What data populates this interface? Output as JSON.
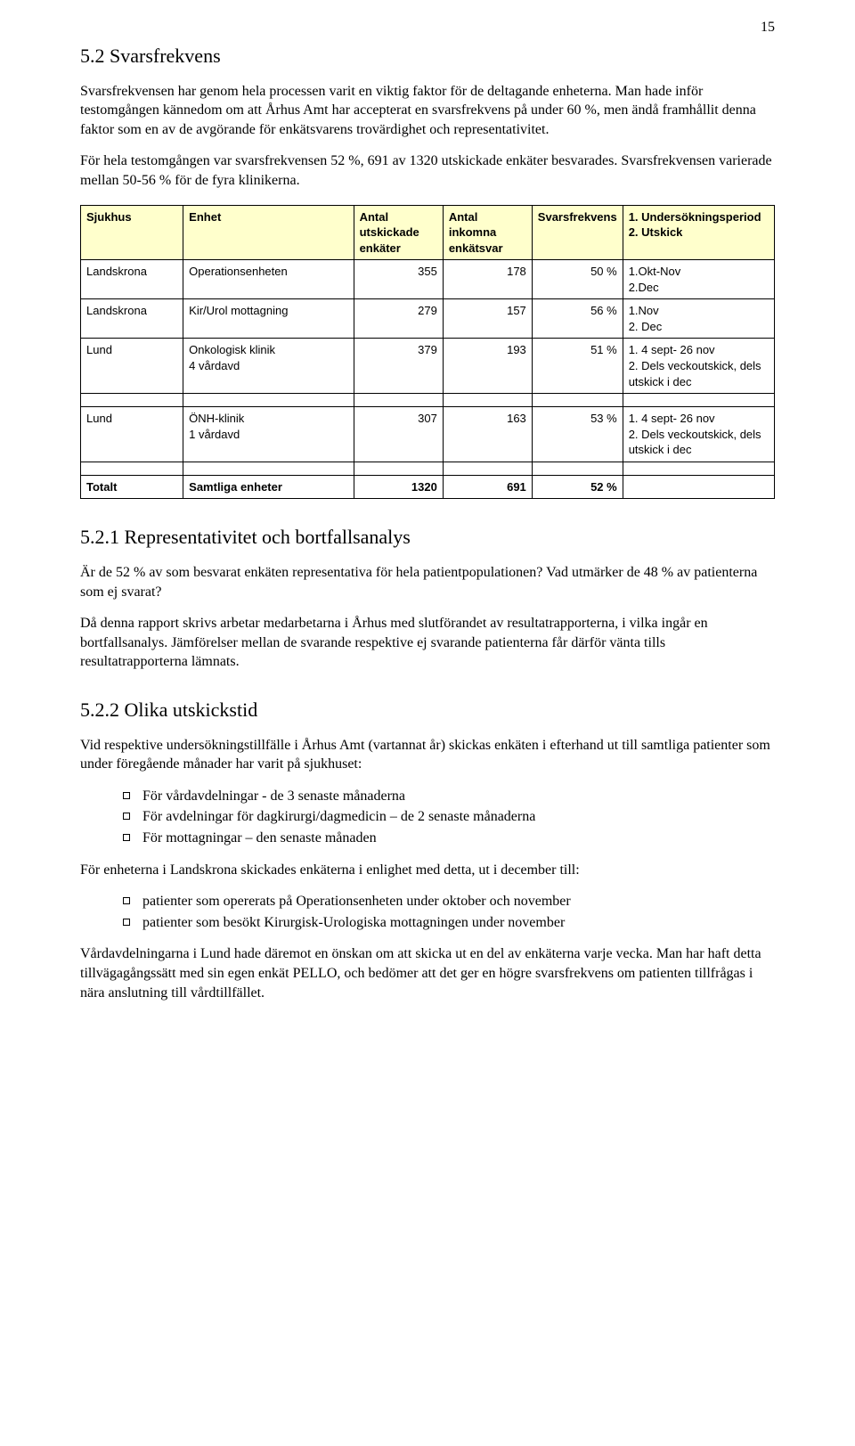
{
  "page_number": "15",
  "section_5_2": {
    "heading": "5.2 Svarsfrekvens",
    "p1": "Svarsfrekvensen har genom hela processen varit en viktig faktor för de deltagande enheterna. Man hade inför testomgången kännedom om att Århus Amt har accepterat en svarsfrekvens på under 60 %, men ändå framhållit denna faktor som en av de avgörande för enkätsvarens trovärdighet och representativitet.",
    "p2": "För hela testomgången var svarsfrekvensen 52 %, 691 av 1320 utskickade enkäter besvarades. Svarsfrekvensen varierade mellan 50-56 % för de fyra klinikerna."
  },
  "table": {
    "header_bg": "#ffffcc",
    "columns": [
      "Sjukhus",
      "Enhet",
      "Antal utskickade enkäter",
      "Antal inkomna enkätsvar",
      "Svarsfrekvens",
      "1. Undersökningsperiod\n2. Utskick"
    ],
    "col_widths": [
      "15%",
      "25%",
      "13%",
      "13%",
      "12%",
      "22%"
    ],
    "rows": [
      {
        "sjukhus": "Landskrona",
        "enhet": "Operationsenheten",
        "ut": "355",
        "in": "178",
        "freq": "50 %",
        "period": "1.Okt-Nov\n2.Dec"
      },
      {
        "sjukhus": "Landskrona",
        "enhet": "Kir/Urol mottagning",
        "ut": "279",
        "in": "157",
        "freq": "56 %",
        "period": "1.Nov\n2. Dec"
      },
      {
        "sjukhus": "Lund",
        "enhet": "Onkologisk klinik\n4 vårdavd",
        "ut": "379",
        "in": "193",
        "freq": "51 %",
        "period": "1. 4 sept- 26 nov\n2. Dels veckoutskick, dels utskick i dec"
      },
      {
        "sjukhus": "Lund",
        "enhet": "ÖNH-klinik\n1 vårdavd",
        "ut": "307",
        "in": "163",
        "freq": "53 %",
        "period": "1. 4 sept- 26 nov\n2. Dels veckoutskick, dels utskick i dec"
      }
    ],
    "total": {
      "sjukhus": "Totalt",
      "enhet": "Samtliga enheter",
      "ut": "1320",
      "in": "691",
      "freq": "52 %",
      "period": ""
    }
  },
  "section_5_2_1": {
    "heading": "5.2.1 Representativitet och bortfallsanalys",
    "p1": "Är de 52 % av som besvarat enkäten representativa för hela patientpopulationen? Vad utmärker de 48 % av patienterna som ej svarat?",
    "p2": "Då denna rapport skrivs arbetar medarbetarna i Århus med slutförandet av resultatrapporterna, i vilka ingår en bortfallsanalys. Jämförelser mellan de svarande respektive ej svarande patienterna får därför vänta tills resultatrapporterna lämnats."
  },
  "section_5_2_2": {
    "heading": "5.2.2 Olika utskickstid",
    "p1": "Vid respektive undersökningstillfälle i Århus Amt (vartannat år) skickas enkäten i efterhand ut till samtliga patienter som under föregående månader har varit på sjukhuset:",
    "list1": [
      "För vårdavdelningar - de 3 senaste månaderna",
      "För avdelningar för dagkirurgi/dagmedicin – de 2 senaste månaderna",
      "För mottagningar – den senaste månaden"
    ],
    "p2": "För enheterna i Landskrona skickades enkäterna i enlighet med detta, ut i december till:",
    "list2": [
      "patienter som opererats på Operationsenheten under oktober och november",
      "patienter som besökt Kirurgisk-Urologiska mottagningen under november"
    ],
    "p3": "Vårdavdelningarna i Lund hade däremot en önskan om att skicka ut en del av enkäterna varje vecka. Man har haft detta tillvägagångssätt med sin egen enkät PELLO, och bedömer att det ger en högre svarsfrekvens om patienten tillfrågas i nära anslutning till vårdtillfället."
  }
}
